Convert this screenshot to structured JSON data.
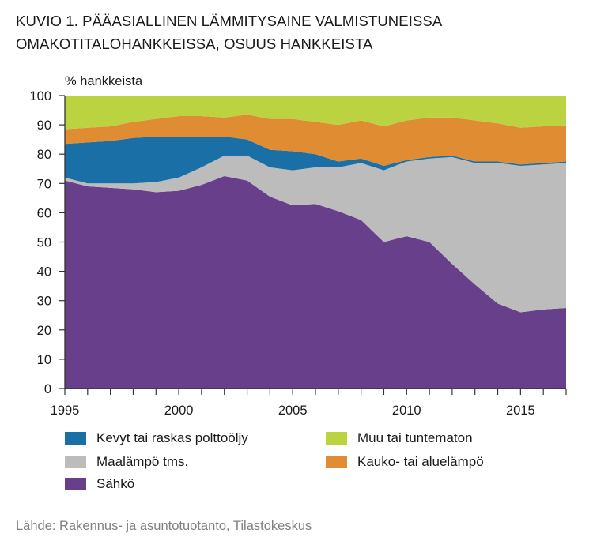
{
  "title_line1": "KUVIO 1. PÄÄASIALLINEN LÄMMITYSAINE VALMISTUNEISSA",
  "title_line2": "OMAKOTITALOHANKKEISSA, OSUUS HANKKEISTA",
  "source": "Lähde: Rakennus- ja asuntotuotanto, Tilastokeskus",
  "chart_data": {
    "type": "area",
    "stacked": true,
    "title": "KUVIO 1. PÄÄASIALLINEN LÄMMITYSAINE VALMISTUNEISSA OMAKOTITALOHANKKEISSA, OSUUS HANKKEISTA",
    "ylabel": "% hankkeista",
    "xlabel": "",
    "ylim": [
      0,
      100
    ],
    "yticks": [
      0,
      10,
      20,
      30,
      40,
      50,
      60,
      70,
      80,
      90,
      100
    ],
    "xlim": [
      1995,
      2017
    ],
    "xtick_labels": [
      "1995",
      "2000",
      "2005",
      "2010",
      "2015"
    ],
    "grid": false,
    "x": [
      1995,
      1996,
      1997,
      1998,
      1999,
      2000,
      2001,
      2002,
      2003,
      2004,
      2005,
      2006,
      2007,
      2008,
      2009,
      2010,
      2011,
      2012,
      2013,
      2014,
      2015,
      2016,
      2017
    ],
    "series": [
      {
        "name": "Sähkö",
        "color": "#673f8a",
        "values": [
          71,
          69,
          68.5,
          68,
          67,
          67.5,
          69.5,
          72.5,
          71,
          65.5,
          62.5,
          63,
          60.5,
          57.5,
          50,
          52,
          50,
          42.5,
          35.5,
          29,
          26,
          27,
          27.5
        ]
      },
      {
        "name": "Maalämpö tms.",
        "color": "#bcbcbc",
        "values": [
          1,
          1,
          1.5,
          2,
          3.5,
          4.5,
          6,
          7,
          8.5,
          10,
          12,
          12.5,
          15,
          19.5,
          24.5,
          25.5,
          28.5,
          36.5,
          41.5,
          48,
          50,
          49.5,
          49.5
        ]
      },
      {
        "name": "Kevyt tai raskas polttoöljy",
        "color": "#1a70a6",
        "values": [
          11.5,
          14,
          14.5,
          15.5,
          15.5,
          14,
          10.5,
          6.5,
          5.5,
          6,
          6.5,
          4.5,
          2,
          1.5,
          1.5,
          0.5,
          0.5,
          0.5,
          0.5,
          0.5,
          0.5,
          0.5,
          0.5
        ]
      },
      {
        "name": "Kauko- tai aluelämpö",
        "color": "#e08c33",
        "values": [
          5,
          5,
          5,
          5.5,
          6,
          7,
          7,
          6.5,
          8.5,
          10.5,
          11,
          11,
          12.5,
          13,
          13.5,
          13.5,
          13.5,
          13,
          14,
          13,
          12.5,
          12.5,
          12
        ]
      },
      {
        "name": "Muu tai tuntematon",
        "color": "#bcd341",
        "values": [
          11.5,
          11,
          10.5,
          9,
          8,
          7,
          7,
          7.5,
          6.5,
          8,
          8,
          9,
          10,
          8.5,
          10.5,
          8.5,
          7.5,
          7.5,
          8.5,
          9.5,
          11,
          10.5,
          10.5
        ]
      }
    ],
    "legend": [
      "Kevyt tai raskas polttoöljy",
      "Muu tai tuntematon",
      "Maalämpö tms.",
      "Kauko- tai aluelämpö",
      "Sähkö"
    ],
    "legend_position": "bottom"
  }
}
